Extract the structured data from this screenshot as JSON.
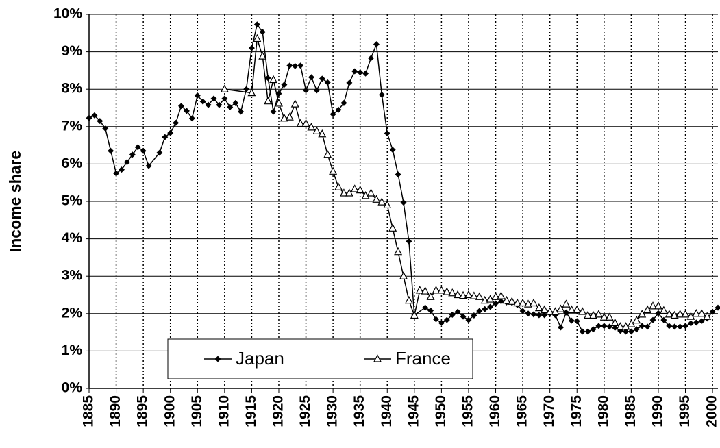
{
  "chart_data": {
    "type": "line",
    "y_label": "Income share",
    "xlim": [
      1885,
      2001
    ],
    "xticks": [
      1885,
      1890,
      1895,
      1900,
      1905,
      1910,
      1915,
      1920,
      1925,
      1930,
      1935,
      1940,
      1945,
      1950,
      1955,
      1960,
      1965,
      1970,
      1975,
      1980,
      1985,
      1990,
      1995,
      2000
    ],
    "ylim": [
      0,
      10
    ],
    "yticks": [
      {
        "value": 0,
        "label": "0%"
      },
      {
        "value": 1,
        "label": "1%"
      },
      {
        "value": 2,
        "label": "2%"
      },
      {
        "value": 3,
        "label": "3%"
      },
      {
        "value": 4,
        "label": "4%"
      },
      {
        "value": 5,
        "label": "5%"
      },
      {
        "value": 6,
        "label": "6%"
      },
      {
        "value": 7,
        "label": "7%"
      },
      {
        "value": 8,
        "label": "8%"
      },
      {
        "value": 9,
        "label": "9%"
      },
      {
        "value": 10,
        "label": "10%"
      }
    ],
    "grid": true,
    "legend": "bottom",
    "series": [
      {
        "name": "Japan",
        "color": "#000000",
        "marker": "diamond",
        "x": [
          1885,
          1886,
          1887,
          1888,
          1889,
          1890,
          1891,
          1892,
          1893,
          1894,
          1895,
          1896,
          1898,
          1899,
          1900,
          1901,
          1902,
          1903,
          1904,
          1905,
          1906,
          1907,
          1908,
          1909,
          1910,
          1911,
          1912,
          1913,
          1914,
          1915,
          1916,
          1917,
          1918,
          1919,
          1920,
          1921,
          1922,
          1923,
          1924,
          1925,
          1926,
          1927,
          1928,
          1929,
          1930,
          1931,
          1932,
          1933,
          1934,
          1935,
          1936,
          1937,
          1938,
          1939,
          1940,
          1941,
          1942,
          1943,
          1944,
          1945,
          1947,
          1948,
          1949,
          1950,
          1951,
          1952,
          1953,
          1954,
          1955,
          1956,
          1957,
          1958,
          1959,
          1960,
          1961,
          1962,
          1963,
          1964,
          1965,
          1966,
          1967,
          1968,
          1969,
          1970,
          1971,
          1972,
          1973,
          1974,
          1975,
          1976,
          1977,
          1978,
          1979,
          1980,
          1981,
          1982,
          1983,
          1984,
          1985,
          1986,
          1987,
          1988,
          1989,
          1990,
          1991,
          1992,
          1993,
          1994,
          1995,
          1996,
          1997,
          1998,
          1999,
          2000,
          2001
        ],
        "values": [
          7.23,
          7.3,
          7.15,
          6.95,
          6.35,
          5.75,
          5.85,
          6.05,
          6.25,
          6.45,
          6.35,
          5.95,
          6.3,
          6.72,
          6.83,
          7.1,
          7.55,
          7.42,
          7.22,
          7.83,
          7.67,
          7.58,
          7.75,
          7.58,
          7.75,
          7.52,
          7.63,
          7.4,
          8.0,
          9.1,
          9.73,
          9.53,
          8.3,
          7.4,
          7.88,
          8.12,
          8.63,
          8.62,
          8.63,
          7.97,
          8.32,
          7.97,
          8.28,
          8.18,
          7.33,
          7.45,
          7.63,
          8.17,
          8.48,
          8.45,
          8.42,
          8.83,
          9.2,
          7.85,
          6.82,
          6.38,
          5.72,
          4.97,
          3.93,
          1.96,
          2.16,
          2.08,
          1.85,
          1.75,
          1.83,
          1.97,
          2.05,
          1.92,
          1.83,
          1.95,
          2.07,
          2.12,
          2.18,
          2.27,
          2.33,
          2.3,
          2.29,
          2.23,
          2.07,
          2.0,
          1.98,
          1.96,
          1.96,
          2.0,
          1.96,
          1.63,
          2.03,
          1.81,
          1.8,
          1.52,
          1.52,
          1.58,
          1.67,
          1.67,
          1.65,
          1.62,
          1.54,
          1.52,
          1.52,
          1.58,
          1.67,
          1.65,
          1.83,
          2.01,
          1.83,
          1.67,
          1.65,
          1.65,
          1.67,
          1.74,
          1.76,
          1.8,
          1.87,
          2.05,
          2.16
        ]
      },
      {
        "name": "France",
        "color": "#000000",
        "marker": "triangle",
        "x": [
          1910,
          1915,
          1916,
          1917,
          1918,
          1919,
          1920,
          1921,
          1922,
          1923,
          1924,
          1925,
          1926,
          1927,
          1928,
          1929,
          1930,
          1931,
          1932,
          1933,
          1934,
          1935,
          1936,
          1937,
          1938,
          1939,
          1940,
          1941,
          1942,
          1943,
          1944,
          1945,
          1946,
          1947,
          1948,
          1949,
          1950,
          1951,
          1952,
          1953,
          1954,
          1955,
          1956,
          1957,
          1958,
          1959,
          1960,
          1961,
          1962,
          1963,
          1964,
          1965,
          1966,
          1967,
          1968,
          1969,
          1970,
          1971,
          1972,
          1973,
          1974,
          1975,
          1976,
          1977,
          1978,
          1979,
          1980,
          1981,
          1982,
          1983,
          1984,
          1985,
          1986,
          1987,
          1988,
          1989,
          1990,
          1991,
          1992,
          1993,
          1994,
          1995,
          1996,
          1997,
          1998,
          1999
        ],
        "values": [
          8.0,
          7.9,
          9.35,
          8.88,
          7.68,
          8.25,
          7.62,
          7.22,
          7.25,
          7.6,
          7.08,
          7.08,
          6.98,
          6.88,
          6.8,
          6.25,
          5.8,
          5.38,
          5.22,
          5.22,
          5.33,
          5.3,
          5.15,
          5.22,
          5.05,
          4.98,
          4.9,
          4.28,
          3.65,
          3.0,
          2.35,
          1.95,
          2.62,
          2.6,
          2.45,
          2.62,
          2.62,
          2.58,
          2.55,
          2.5,
          2.48,
          2.5,
          2.47,
          2.45,
          2.35,
          2.38,
          2.45,
          2.47,
          2.35,
          2.32,
          2.28,
          2.28,
          2.25,
          2.28,
          2.15,
          2.1,
          2.05,
          2.05,
          2.12,
          2.25,
          2.1,
          2.1,
          2.05,
          1.95,
          1.95,
          1.98,
          1.9,
          1.9,
          1.75,
          1.65,
          1.65,
          1.72,
          1.82,
          1.98,
          2.1,
          2.2,
          2.2,
          2.08,
          1.98,
          1.95,
          1.98,
          1.98,
          1.92,
          2.0,
          2.0,
          1.92
        ]
      }
    ]
  }
}
